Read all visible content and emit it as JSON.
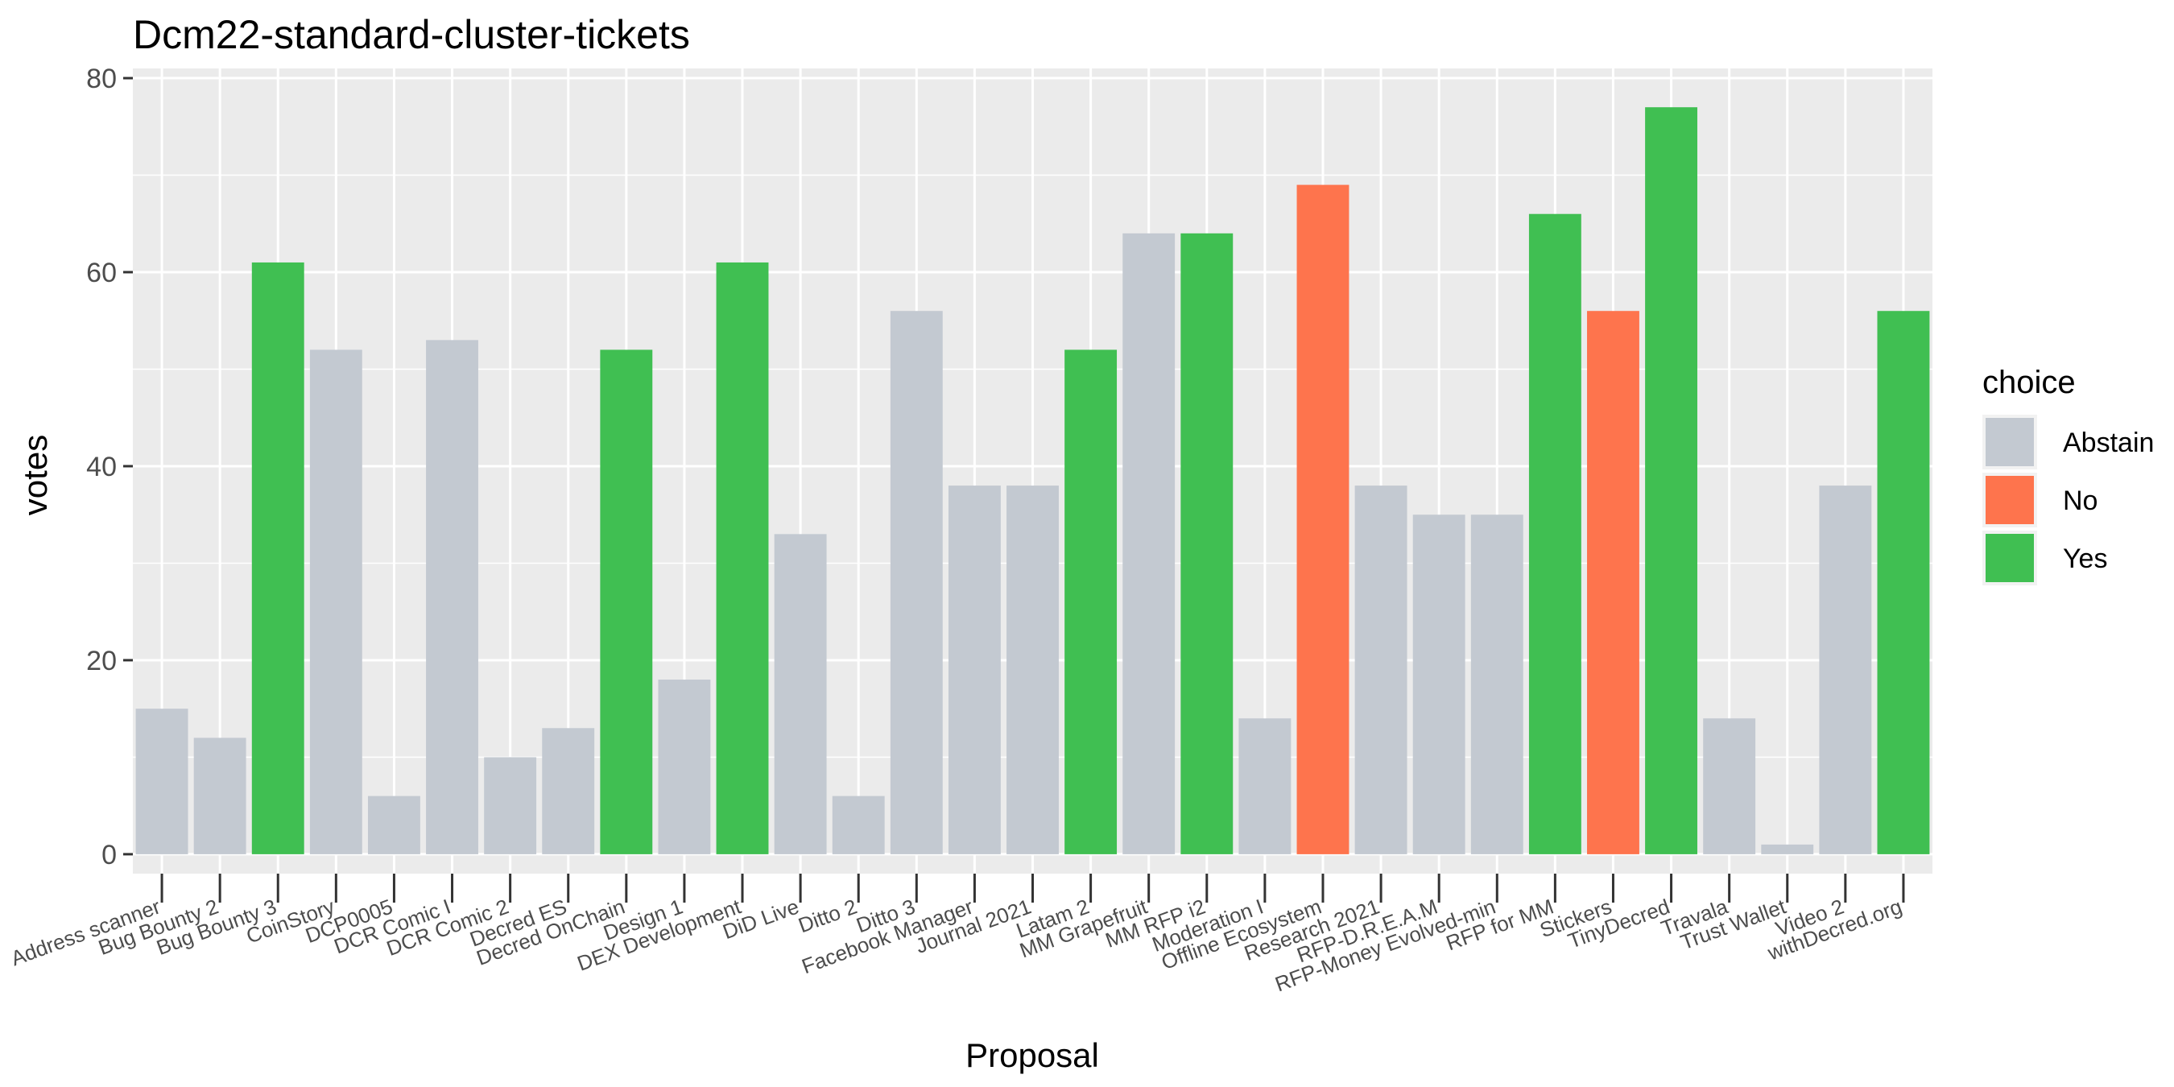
{
  "chart_data": {
    "type": "bar",
    "title": "Dcm22-standard-cluster-tickets",
    "xlabel": "Proposal",
    "ylabel": "votes",
    "ylim": [
      -2,
      81
    ],
    "yticks": [
      0,
      20,
      40,
      60,
      80
    ],
    "grid": true,
    "legend": {
      "title": "choice",
      "placement": "right",
      "entries": [
        {
          "label": "Abstain",
          "color": "#c3c9d1"
        },
        {
          "label": "No",
          "color": "#fe744d"
        },
        {
          "label": "Yes",
          "color": "#40bf52"
        }
      ]
    },
    "categories": [
      "Address scanner",
      "Bug Bounty 2",
      "Bug Bounty 3",
      "CoinStory",
      "DCP0005",
      "DCR Comic I",
      "DCR Comic 2",
      "Decred ES",
      "Decred OnChain",
      "Design 1",
      "DEX Development",
      "DiD Live",
      "Ditto 2",
      "Ditto 3",
      "Facebook Manager",
      "Journal 2021",
      "Latam 2",
      "MM Grapefruit",
      "MM RFP i2",
      "Moderation I",
      "Offline Ecosystem",
      "Research 2021",
      "RFP-D.R.E.A.M",
      "RFP-Money Evolved-min",
      "RFP for MM",
      "Stickers",
      "TinyDecred",
      "Travala",
      "Trust Wallet",
      "Video 2",
      "withDecred.org"
    ],
    "values": [
      15,
      12,
      61,
      52,
      6,
      53,
      10,
      13,
      52,
      18,
      61,
      33,
      6,
      56,
      38,
      38,
      52,
      64,
      64,
      14,
      69,
      38,
      35,
      35,
      66,
      56,
      77,
      14,
      1,
      38,
      56
    ],
    "choices": [
      "Abstain",
      "Abstain",
      "Yes",
      "Abstain",
      "Abstain",
      "Abstain",
      "Abstain",
      "Abstain",
      "Yes",
      "Abstain",
      "Yes",
      "Abstain",
      "Abstain",
      "Abstain",
      "Abstain",
      "Abstain",
      "Yes",
      "Abstain",
      "Yes",
      "Abstain",
      "No",
      "Abstain",
      "Abstain",
      "Abstain",
      "Yes",
      "No",
      "Yes",
      "Abstain",
      "Abstain",
      "Abstain",
      "Yes"
    ]
  }
}
